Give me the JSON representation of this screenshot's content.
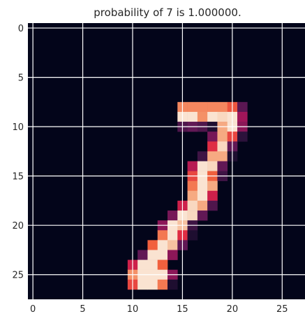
{
  "chart_data": {
    "type": "heatmap",
    "title": "probability of  7 is  1.000000.",
    "xlabel": "",
    "ylabel": "",
    "rows": 28,
    "cols": 28,
    "xlim": [
      -0.5,
      27.5
    ],
    "ylim": [
      27.5,
      -0.5
    ],
    "x_ticks": [
      0,
      5,
      10,
      15,
      20,
      25
    ],
    "y_ticks": [
      0,
      5,
      10,
      15,
      20,
      25
    ],
    "grid": true,
    "colormap": "rocket",
    "value_range": [
      0,
      1
    ],
    "cells": [
      [
        8,
        15,
        0.78
      ],
      [
        8,
        16,
        0.78
      ],
      [
        8,
        17,
        0.78
      ],
      [
        8,
        18,
        0.78
      ],
      [
        8,
        19,
        0.78
      ],
      [
        8,
        20,
        0.68
      ],
      [
        8,
        21,
        0.28
      ],
      [
        9,
        15,
        0.98
      ],
      [
        9,
        16,
        0.98
      ],
      [
        9,
        17,
        0.8
      ],
      [
        9,
        18,
        0.98
      ],
      [
        9,
        19,
        0.95
      ],
      [
        9,
        20,
        0.98
      ],
      [
        9,
        21,
        0.45
      ],
      [
        10,
        15,
        0.25
      ],
      [
        10,
        16,
        0.3
      ],
      [
        10,
        17,
        0.25
      ],
      [
        10,
        18,
        0.1
      ],
      [
        10,
        19,
        0.85
      ],
      [
        10,
        20,
        0.98
      ],
      [
        10,
        21,
        0.4
      ],
      [
        11,
        18,
        0.35
      ],
      [
        11,
        19,
        0.85
      ],
      [
        11,
        20,
        0.65
      ],
      [
        11,
        21,
        0.15
      ],
      [
        12,
        18,
        0.6
      ],
      [
        12,
        19,
        0.95
      ],
      [
        12,
        20,
        0.3
      ],
      [
        13,
        17,
        0.2
      ],
      [
        13,
        18,
        0.85
      ],
      [
        13,
        19,
        0.85
      ],
      [
        13,
        20,
        0.1
      ],
      [
        14,
        16,
        0.5
      ],
      [
        14,
        17,
        0.98
      ],
      [
        14,
        18,
        0.95
      ],
      [
        14,
        19,
        0.3
      ],
      [
        15,
        16,
        0.65
      ],
      [
        15,
        17,
        0.98
      ],
      [
        15,
        18,
        0.7
      ],
      [
        15,
        19,
        0.2
      ],
      [
        16,
        16,
        0.75
      ],
      [
        16,
        17,
        0.98
      ],
      [
        16,
        18,
        0.85
      ],
      [
        17,
        16,
        0.85
      ],
      [
        17,
        17,
        0.98
      ],
      [
        17,
        18,
        0.55
      ],
      [
        18,
        15,
        0.55
      ],
      [
        18,
        16,
        0.95
      ],
      [
        18,
        17,
        0.85
      ],
      [
        18,
        18,
        0.25
      ],
      [
        19,
        14,
        0.35
      ],
      [
        19,
        15,
        0.98
      ],
      [
        19,
        16,
        0.95
      ],
      [
        19,
        17,
        0.3
      ],
      [
        20,
        13,
        0.4
      ],
      [
        20,
        14,
        0.98
      ],
      [
        20,
        15,
        0.9
      ],
      [
        20,
        16,
        0.2
      ],
      [
        21,
        13,
        0.75
      ],
      [
        21,
        14,
        0.98
      ],
      [
        21,
        15,
        0.6
      ],
      [
        21,
        16,
        0.1
      ],
      [
        22,
        12,
        0.7
      ],
      [
        22,
        13,
        0.98
      ],
      [
        22,
        14,
        0.9
      ],
      [
        22,
        15,
        0.3
      ],
      [
        23,
        11,
        0.3
      ],
      [
        23,
        12,
        0.98
      ],
      [
        23,
        13,
        0.98
      ],
      [
        23,
        14,
        0.4
      ],
      [
        24,
        10,
        0.55
      ],
      [
        24,
        11,
        0.98
      ],
      [
        24,
        12,
        0.98
      ],
      [
        24,
        13,
        0.7
      ],
      [
        25,
        10,
        0.8
      ],
      [
        25,
        11,
        0.98
      ],
      [
        25,
        12,
        0.98
      ],
      [
        25,
        13,
        0.98
      ],
      [
        25,
        14,
        0.4
      ],
      [
        26,
        10,
        0.65
      ],
      [
        26,
        11,
        0.98
      ],
      [
        26,
        12,
        0.98
      ],
      [
        26,
        13,
        0.75
      ],
      [
        26,
        14,
        0.1
      ]
    ]
  }
}
